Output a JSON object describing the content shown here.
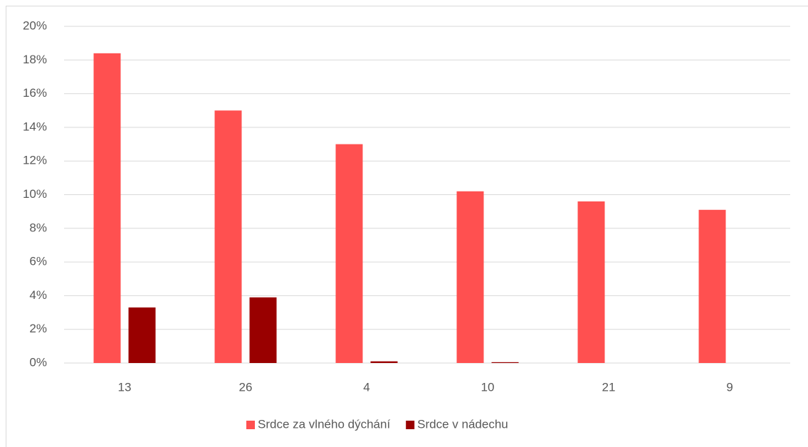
{
  "chart_data": {
    "type": "bar",
    "categories": [
      "13",
      "26",
      "4",
      "10",
      "21",
      "9"
    ],
    "series": [
      {
        "name": "Srdce za vlného dýchání",
        "color": "#ff5050",
        "values": [
          18.4,
          15.0,
          13.0,
          10.2,
          9.6,
          9.1
        ]
      },
      {
        "name": "Srdce v nádechu",
        "color": "#990000",
        "values": [
          3.3,
          3.9,
          0.1,
          0.05,
          0,
          0
        ]
      }
    ],
    "ylim": [
      0,
      20
    ],
    "yticks": [
      {
        "value": 0,
        "label": "0%"
      },
      {
        "value": 2,
        "label": "2%"
      },
      {
        "value": 4,
        "label": "4%"
      },
      {
        "value": 6,
        "label": "6%"
      },
      {
        "value": 8,
        "label": "8%"
      },
      {
        "value": 10,
        "label": "10%"
      },
      {
        "value": 12,
        "label": "12%"
      },
      {
        "value": 14,
        "label": "14%"
      },
      {
        "value": 16,
        "label": "16%"
      },
      {
        "value": 18,
        "label": "18%"
      },
      {
        "value": 20,
        "label": "20%"
      }
    ],
    "grid": true,
    "legend": "bottom"
  }
}
